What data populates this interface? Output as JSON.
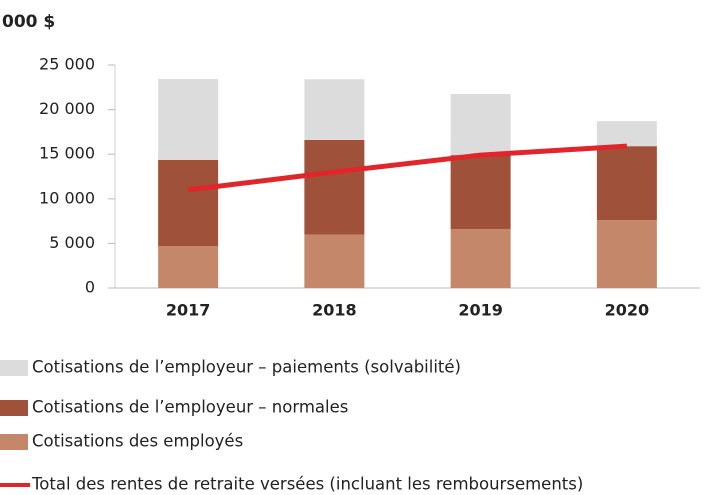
{
  "chart_data": {
    "type": "bar",
    "title": "000 $",
    "categories": [
      "2017",
      "2018",
      "2019",
      "2020"
    ],
    "series": [
      {
        "name": "Cotisations de l’employeur – paiements (solvabilité)",
        "type": "bar",
        "color": "#dcdcdc",
        "values": [
          9080,
          6800,
          6850,
          2800
        ]
      },
      {
        "name": "Cotisations de l’employeur – normales",
        "type": "bar",
        "color": "#a0513a",
        "values": [
          9650,
          10600,
          8300,
          8300
        ]
      },
      {
        "name": "Cotisations des employés",
        "type": "bar",
        "color": "#c4876a",
        "values": [
          4700,
          6000,
          6600,
          7600
        ]
      },
      {
        "name": "Total des rentes de retraite versées (incluant les remboursements)",
        "type": "line",
        "color": "#e0262a",
        "values": [
          11000,
          13000,
          14900,
          15900
        ]
      }
    ],
    "ylim": [
      0,
      25000
    ],
    "yticks": [
      0,
      {
        "value": 5000,
        "label": "5 000"
      },
      {
        "value": 10000,
        "label": "10 000"
      },
      {
        "value": 15000,
        "label": "15 000"
      },
      {
        "value": 20000,
        "label": "20 000"
      },
      {
        "value": 25000,
        "label": "25 000"
      }
    ],
    "grid": false
  }
}
